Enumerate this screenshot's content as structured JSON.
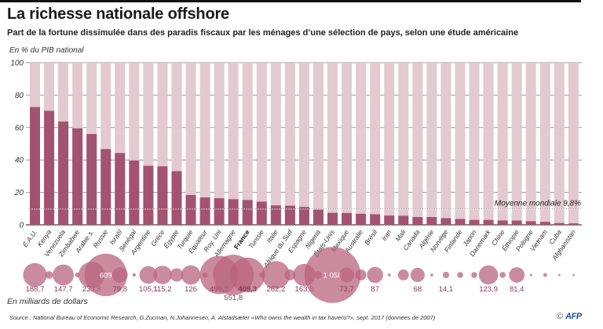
{
  "header": {
    "title": "La richesse nationale offshore",
    "subtitle": "Part de la fortune dissimulée dans des paradis fiscaux par les ménages d’une sélection de pays, selon une étude américaine",
    "unit_top": "En % du PIB national",
    "unit_bottom": "En milliards de dollars"
  },
  "footer": {
    "source": "Source :  National Bureau of Economic Research, G.Zucman, N.Johannesen, A. Alstadsæter «Who owns the wealth in tax havens?», sept. 2017 (données de 2007)",
    "copyright_symbol": "©",
    "agency": "AFP"
  },
  "colors": {
    "bar": "#a3536f",
    "bar_background": "#e3c9d0",
    "bubble": "#b9647f",
    "bubble_label": "#8a3a5e"
  },
  "chart_data": {
    "type": "bar",
    "title": "La richesse nationale offshore",
    "ylabel": "En % du PIB national",
    "ylim": [
      0,
      100
    ],
    "yticks": [
      0,
      20,
      40,
      60,
      80,
      100
    ],
    "grid": true,
    "reference_line": {
      "label": "Moyenne mondiale",
      "value": 9.8,
      "value_label": "9,8%"
    },
    "categories": [
      "É.A.U.",
      "Kenya",
      "Venezuela",
      "Zimbabwe",
      "Arabie s.",
      "Russie",
      "Israël",
      "Sénégal",
      "Argentine",
      "Grèce",
      "Égypte",
      "Turquie",
      "Équateur",
      "Roy. Uni",
      "Allemagne",
      "France",
      "Tunisie",
      "Italie",
      "Afrique du Sud",
      "Espagne",
      "Nigeria",
      "États-Unis",
      "Mexique",
      "Australie",
      "Brésil",
      "Iran",
      "Mali",
      "Canada",
      "Algérie",
      "Norvège",
      "Finlande",
      "Japon",
      "Danemark",
      "Chine",
      "Éthiopie",
      "Pologne",
      "Vietnam",
      "Cuba",
      "Afghanistan"
    ],
    "highlight_category": "France",
    "values": [
      72.6,
      70.3,
      63.7,
      59.5,
      56.0,
      46.7,
      44.3,
      39.7,
      36.4,
      36.1,
      33.1,
      18.4,
      16.9,
      16.4,
      15.8,
      15.3,
      14.3,
      12.0,
      11.8,
      11.0,
      9.4,
      7.4,
      7.3,
      6.8,
      6.5,
      5.7,
      5.6,
      4.8,
      4.8,
      4.1,
      3.6,
      3.0,
      3.0,
      2.7,
      2.6,
      2.2,
      1.8,
      1.1,
      0.9
    ],
    "bubbles": {
      "label": "En milliards de dollars",
      "values": [
        188.7,
        20,
        147.7,
        8,
        233.8,
        609,
        79.8,
        4,
        105.1,
        115.2,
        60,
        126,
        10,
        498.2,
        551.8,
        409.3,
        8,
        262.2,
        40,
        163.8,
        20,
        1058,
        73.7,
        40,
        87,
        3,
        40,
        68,
        3,
        14.1,
        12,
        12,
        123.9,
        12,
        81.4,
        2,
        5,
        1.5,
        1.5
      ],
      "labels": [
        "188,7",
        "",
        "147,7",
        "",
        "233,8",
        "609",
        "79,8",
        "",
        "105,1",
        "115,2",
        "",
        "126",
        "",
        "498,2",
        "551,8",
        "409,3",
        "",
        "262,2",
        "",
        "163,8",
        "",
        "1 058",
        "73,7",
        "",
        "87",
        "",
        "",
        "68",
        "",
        "14,1",
        "",
        "",
        "123,9",
        "",
        "81,4",
        "",
        "",
        "",
        ""
      ]
    }
  }
}
